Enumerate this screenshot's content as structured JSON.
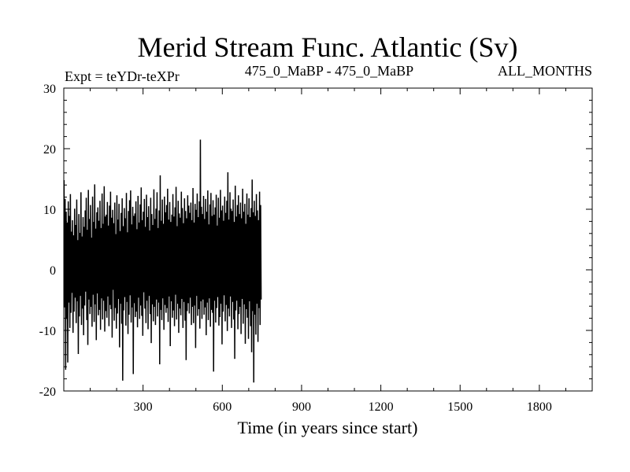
{
  "chart_data": {
    "type": "line",
    "title": "Merid Stream Func. Atlantic (Sv)",
    "subtitle_left": "Expt = teYDr-teXPr",
    "subtitle_center": "475_0_MaBP - 475_0_MaBP",
    "subtitle_right": "ALL_MONTHS",
    "xlabel": "Time (in years since start)",
    "ylabel": "",
    "xlim": [
      0,
      2000
    ],
    "ylim": [
      -20,
      30
    ],
    "x_ticks": [
      300,
      600,
      900,
      1200,
      1500,
      1800
    ],
    "y_ticks": [
      -20,
      -10,
      0,
      10,
      20,
      30
    ],
    "grid": false,
    "series": [
      {
        "color": "#000000",
        "x_start": 1,
        "x_step": 2,
        "values": [
          14.8,
          -6.2,
          11.7,
          -16.5,
          9.6,
          -8.1,
          7.8,
          -15.3,
          11.3,
          -5.4,
          8.9,
          -9.6,
          12.5,
          -7.1,
          6.3,
          -3.8,
          8.2,
          -10.4,
          5.7,
          -6.9,
          10.1,
          -4.6,
          7.4,
          -8.8,
          11.6,
          -5.2,
          4.9,
          -13.9,
          9.2,
          -7.7,
          6.1,
          -4.3,
          12.8,
          -9.1,
          5.5,
          -6.4,
          8.7,
          -10.8,
          7.1,
          -5.9,
          9.8,
          -3.6,
          11.9,
          -8.3,
          6.6,
          -12.4,
          13.2,
          -4.9,
          8.4,
          -7.3,
          10.7,
          -6.1,
          5.3,
          -9.4,
          12.1,
          -4.1,
          7.9,
          -8.6,
          14.1,
          -5.7,
          6.8,
          -11.6,
          9.5,
          -3.9,
          10.3,
          -7.5,
          8.1,
          -6.6,
          11.4,
          -9.9,
          6.9,
          -4.7,
          12.6,
          -8.2,
          7.6,
          -5.1,
          13.8,
          -10.2,
          8.8,
          -6.8,
          9.1,
          -7.9,
          11.2,
          -4.4,
          7.3,
          -9.3,
          10.6,
          -5.8,
          12.9,
          -6.5,
          8.6,
          -11.2,
          9.9,
          -3.3,
          7.7,
          -8.4,
          11.1,
          -6.3,
          5.9,
          -9.7,
          12.3,
          -7.2,
          8.3,
          -4.8,
          10.9,
          -12.8,
          6.4,
          -5.6,
          9.4,
          -8.9,
          11.8,
          -18.3,
          7.2,
          -6.7,
          10.2,
          -4.5,
          8.5,
          -9.2,
          12.7,
          -5.3,
          6.2,
          -10.6,
          9.7,
          -7.4,
          11.5,
          -4.2,
          13.1,
          -8.7,
          7.5,
          -6.2,
          10.4,
          -17.2,
          8.9,
          -5.5,
          9.3,
          -7.8,
          11.3,
          -6.9,
          6.7,
          -9.5,
          12.2,
          -4.6,
          7.8,
          -8.1,
          10.8,
          -5.9,
          13.6,
          -7.6,
          8.2,
          -10.9,
          9.6,
          -3.7,
          11.7,
          -6.4,
          7.1,
          -8.8,
          12.4,
          -5.1,
          8.7,
          -9.8,
          10.5,
          -4.3,
          6.5,
          -7.3,
          11.9,
          -12.1,
          9.2,
          -5.7,
          7.4,
          -8.5,
          13.3,
          -6.1,
          8.4,
          -9.1,
          10.1,
          -4.9,
          12.8,
          -7.7,
          6.9,
          -5.4,
          9.8,
          -15.6,
          15.6,
          -6.6,
          8.1,
          -8.3,
          11.6,
          -4.7,
          7.6,
          -9.9,
          12.1,
          -5.8,
          9.5,
          -7.1,
          10.7,
          -6.3,
          13.4,
          -8.6,
          8.3,
          -4.4,
          11.2,
          -12.6,
          7.9,
          -5.2,
          9.1,
          -7.9,
          12.5,
          -6.7,
          8.8,
          -9.3,
          10.3,
          -4.1,
          13.7,
          -8.2,
          7.2,
          -5.6,
          11.4,
          -10.4,
          9.3,
          -6.4,
          8.6,
          -7.5,
          12.9,
          -4.8,
          10.2,
          -9.6,
          7.7,
          -5.3,
          11.8,
          -8.4,
          9.7,
          -14.9,
          8.5,
          -6.8,
          12.3,
          -5.5,
          10.6,
          -7.2,
          9.4,
          -4.6,
          11.1,
          -9.1,
          8.2,
          -6.1,
          13.5,
          -8.8,
          7.8,
          -5.9,
          10.9,
          -12.9,
          9.9,
          -4.3,
          12.6,
          -7.6,
          8.7,
          -6.5,
          11.3,
          -9.7,
          21.5,
          -5.2,
          10.4,
          -8.1,
          9.2,
          -4.9,
          12.2,
          -7.4,
          8.4,
          -6.2,
          11.7,
          -10.8,
          9.6,
          -5.4,
          13.1,
          -8.3,
          7.5,
          -4.7,
          10.8,
          -9.4,
          12.7,
          -6.6,
          8.9,
          -7.1,
          11.5,
          -16.8,
          9.1,
          -5.1,
          10.3,
          -8.7,
          12.4,
          -6.3,
          7.3,
          -4.5,
          11.9,
          -9.2,
          8.6,
          -7.8,
          13.2,
          -5.6,
          9.8,
          -12.3,
          10.6,
          -6.9,
          8.1,
          -4.2,
          12.1,
          -8.5,
          9.4,
          -5.8,
          11.4,
          -10.1,
          16.1,
          -6.4,
          8.3,
          -7.7,
          12.8,
          -4.4,
          10.1,
          -9.6,
          9.7,
          -5.3,
          11.6,
          -8.2,
          7.9,
          -14.7,
          13.9,
          -6.7,
          8.8,
          -5.1,
          10.7,
          -9.8,
          12.3,
          -7.3,
          9.2,
          -6.1,
          11.1,
          -10.6,
          8.5,
          -4.8,
          13.4,
          -8.9,
          9.6,
          -5.7,
          10.9,
          -12.2,
          7.6,
          -6.5,
          12.6,
          -7.9,
          9.1,
          -11.4,
          11.8,
          -5.2,
          8.7,
          -9.3,
          10.2,
          -13.6,
          14.9,
          -6.8,
          9.5,
          -18.6,
          11.4,
          -7.4,
          8.9,
          -10.7,
          12.5,
          -5.6,
          9.8,
          -11.9,
          8.2,
          -6.3,
          12.9,
          -9.1,
          10.7,
          -4.9
        ]
      }
    ]
  }
}
